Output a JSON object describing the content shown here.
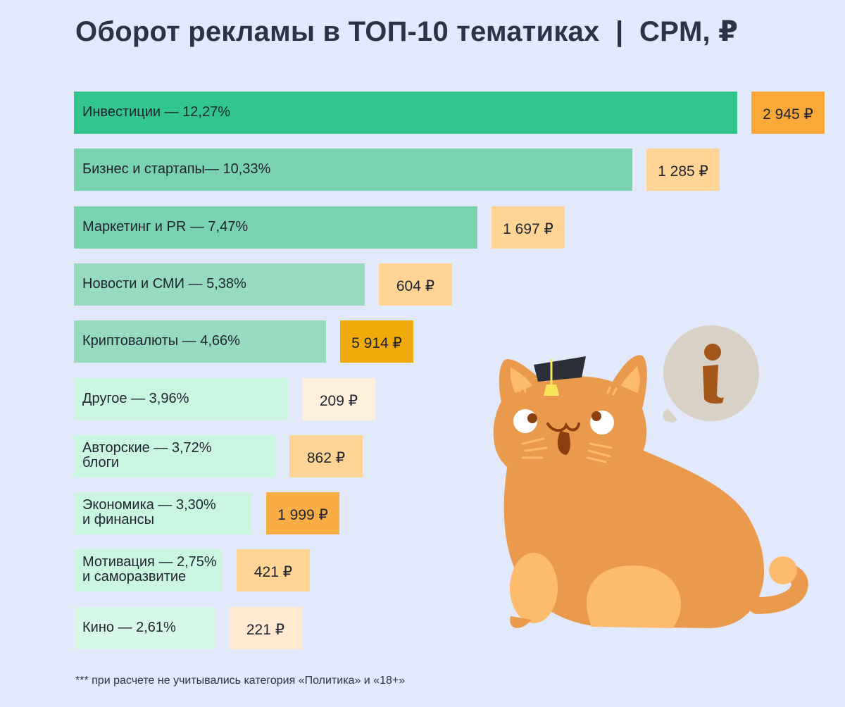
{
  "chart_data": {
    "type": "bar",
    "title": "Оборот рекламы в ТОП-10 тематиках  |  CPM, ₽",
    "orientation": "horizontal",
    "categories": [
      "Инвестиции — 12,27%",
      "Бизнес и стартапы— 10,33%",
      "Маркетинг и PR — 7,47%",
      "Новости и СМИ — 5,38%",
      "Криптовалюты — 4,66%",
      "Другое — 3,96%",
      "Авторские — 3,72%\nблоги",
      "Экономика — 3,30%\nи финансы",
      "Мотивация — 2,75%\nи саморазвитие",
      "Кино  — 2,61%"
    ],
    "series": [
      {
        "values": [
          12.27,
          10.33,
          7.47,
          5.38,
          4.66,
          3.96,
          3.72,
          3.3,
          2.75,
          2.61
        ]
      }
    ],
    "cpm_values": [
      2945,
      1285,
      1697,
      604,
      5914,
      209,
      862,
      1999,
      421,
      221
    ],
    "cpm_labels": [
      "2 945 ₽",
      "1 285 ₽",
      "1 697 ₽",
      "604 ₽",
      "5 914 ₽",
      "209 ₽",
      "862 ₽",
      "1 999 ₽",
      "421 ₽",
      "221 ₽"
    ],
    "bar_colors": [
      "#32c68e",
      "#79d3b0",
      "#79d3b0",
      "#96dbc0",
      "#96dbc0",
      "#c9f5e1",
      "#c9f5e1",
      "#c9f5e1",
      "#c9f5e1",
      "#d7f7e8"
    ],
    "cpm_colors": [
      "#f8a937",
      "#ffd495",
      "#ffd495",
      "#ffd495",
      "#f0ab0a",
      "#fff0dc",
      "#ffd495",
      "#f8ae45",
      "#ffd495",
      "#ffead1"
    ]
  },
  "footnote": "*** при расчете не учитывались категория «Политика» и «18+»",
  "colors": {
    "background": "#e2e9fb",
    "cat_body": "#e99a4d",
    "cat_belly": "#fdbb6e",
    "bubble": "#d9d1c6",
    "info_glyph": "#a4571a"
  },
  "icons": [
    "cat-mascot-icon",
    "info-icon",
    "graduation-cap-icon"
  ]
}
